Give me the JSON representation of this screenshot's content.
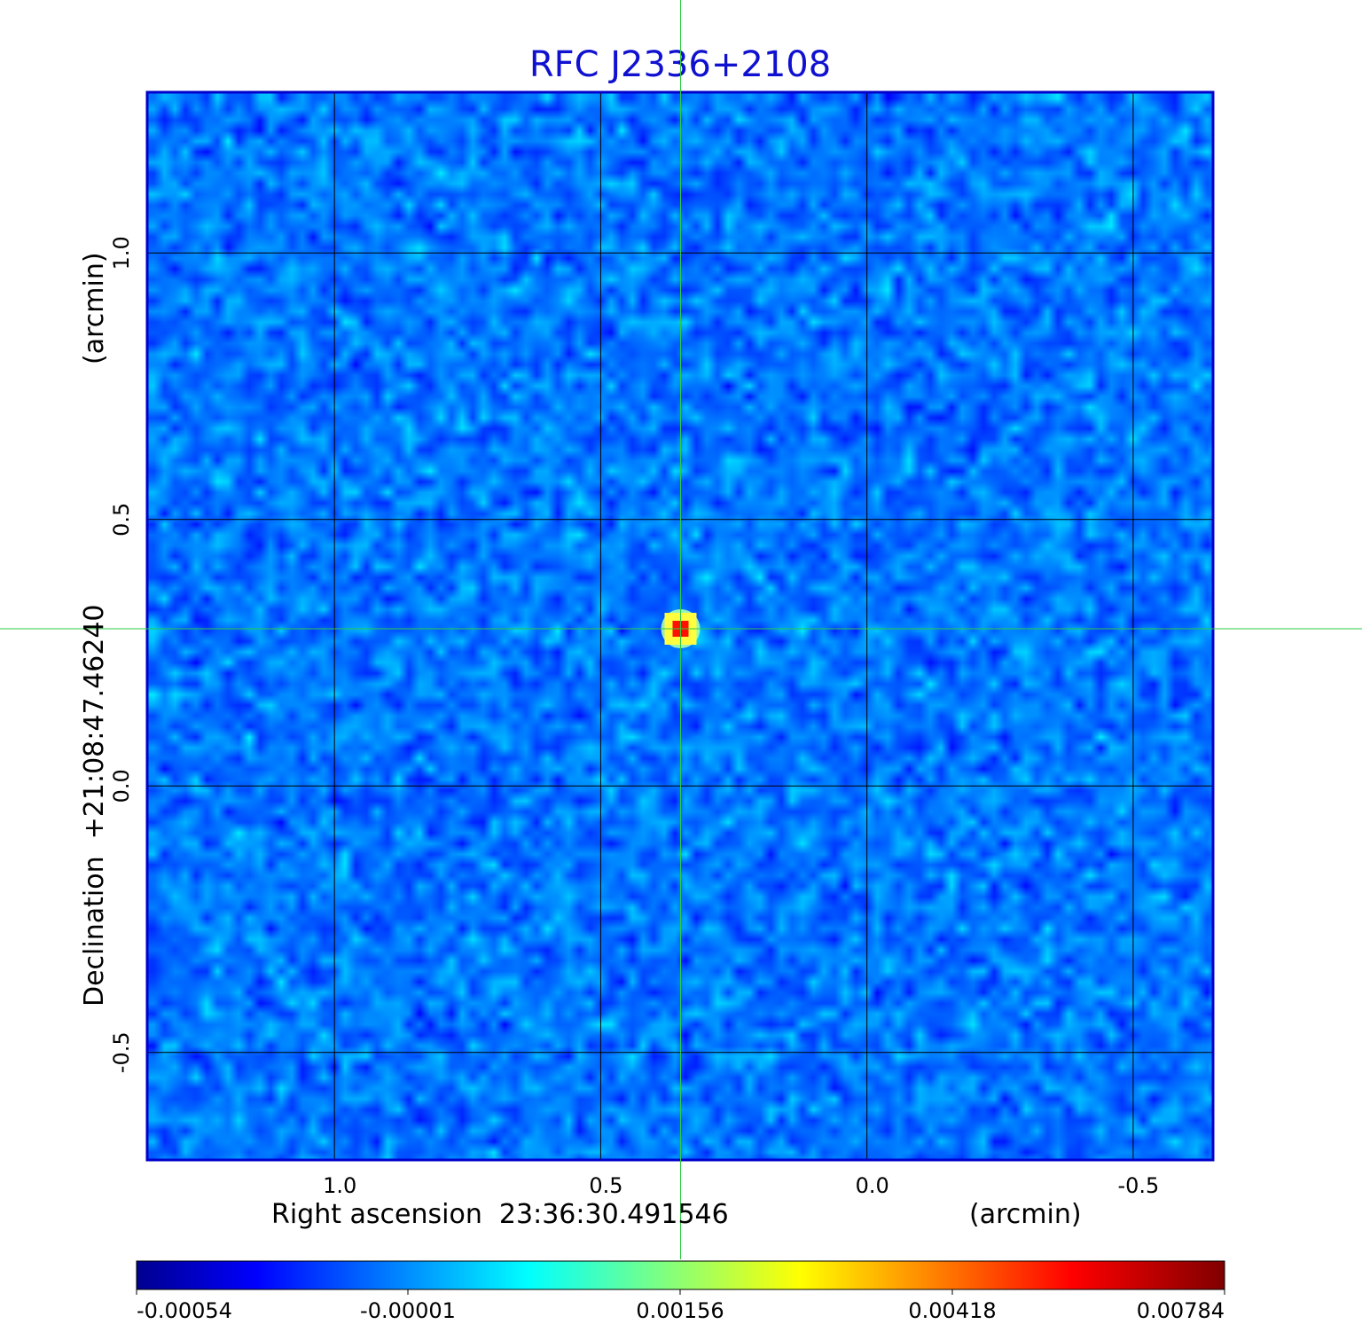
{
  "chart_data": {
    "type": "heatmap",
    "title": "RFC J2336+2108",
    "xlabel": "Right ascension  23:36:30.491546",
    "xlabel_unit": "(arcmin)",
    "ylabel": "Declination  +21:08:47.46240",
    "ylabel_unit": "(arcmin)",
    "x_ticks": [
      {
        "value": 1.0,
        "label": "1.0"
      },
      {
        "value": 0.5,
        "label": "0.5"
      },
      {
        "value": 0.0,
        "label": "0.0"
      },
      {
        "value": -0.5,
        "label": "-0.5"
      }
    ],
    "y_ticks": [
      {
        "value": 1.0,
        "label": "1.0"
      },
      {
        "value": 0.5,
        "label": "0.5"
      },
      {
        "value": 0.0,
        "label": "0.0"
      },
      {
        "value": -0.5,
        "label": "-0.5"
      }
    ],
    "xlim": [
      1.35,
      -0.65
    ],
    "ylim": [
      -0.7,
      1.3
    ],
    "x_direction": "decreasing",
    "grid": true,
    "crosshair": {
      "x": 0.35,
      "y": 0.295,
      "color": "#2ecc40"
    },
    "source": {
      "x": 0.35,
      "y": 0.295,
      "peak": 0.00784
    },
    "colorbar": {
      "placement": "bottom",
      "colormap": "jet",
      "range": [
        -0.00054,
        0.00784
      ],
      "ticks": [
        {
          "value": -0.00054,
          "label": "-0.00054"
        },
        {
          "value": -1e-05,
          "label": "-0.00001"
        },
        {
          "value": 0.00156,
          "label": "0.00156"
        },
        {
          "value": 0.00418,
          "label": "0.00418"
        },
        {
          "value": 0.00784,
          "label": "0.00784"
        }
      ]
    },
    "colors": {
      "title": "#1010d0",
      "frame": "#0000cc",
      "grid": "#000000",
      "crosshair": "#2ecc40"
    }
  }
}
